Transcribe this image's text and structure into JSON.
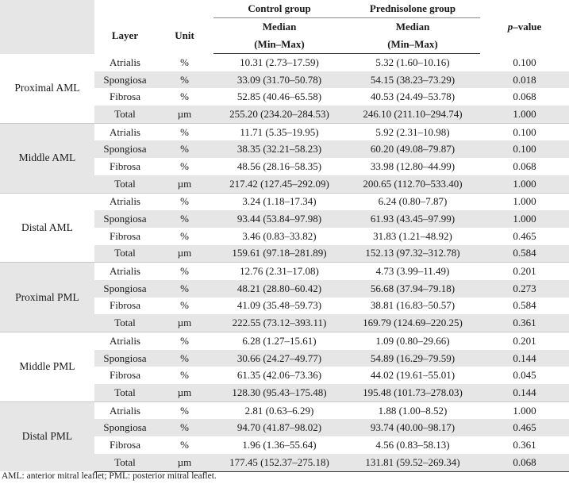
{
  "headers": {
    "control_group": "Control group",
    "prednisolone_group": "Prednisolone group",
    "layer": "Layer",
    "unit": "Unit",
    "pvalue_p": "p",
    "pvalue_suffix": "–value",
    "median": "Median",
    "minmax": "(Min–Max)"
  },
  "groups": [
    {
      "region": "Proximal AML",
      "shaded": false,
      "rows": [
        {
          "layer": "Atrialis",
          "unit": "%",
          "control": "10.31 (2.73–17.59)",
          "pred": "5.32 (1.60–10.16)",
          "p": "0.100"
        },
        {
          "layer": "Spongiosa",
          "unit": "%",
          "control": "33.09 (31.70–50.78)",
          "pred": "54.15 (38.23–73.29)",
          "p": "0.018"
        },
        {
          "layer": "Fibrosa",
          "unit": "%",
          "control": "52.85 (40.46–65.58)",
          "pred": "40.53 (24.49–53.78)",
          "p": "0.068"
        },
        {
          "layer": "Total",
          "unit": "µm",
          "control": "255.20 (234.20–284.53)",
          "pred": "246.10 (211.10–294.74)",
          "p": "1.000"
        }
      ]
    },
    {
      "region": "Middle AML",
      "shaded": true,
      "rows": [
        {
          "layer": "Atrialis",
          "unit": "%",
          "control": "11.71 (5.35–19.95)",
          "pred": "5.92 (2.31–10.98)",
          "p": "0.100"
        },
        {
          "layer": "Spongiosa",
          "unit": "%",
          "control": "38.35 (32.21–58.23)",
          "pred": "60.20 (49.08–79.87)",
          "p": "0.100"
        },
        {
          "layer": "Fibrosa",
          "unit": "%",
          "control": "48.56 (28.16–58.35)",
          "pred": "33.98 (12.80–44.99)",
          "p": "0.068"
        },
        {
          "layer": "Total",
          "unit": "µm",
          "control": "217.42 (127.45–292.09)",
          "pred": "200.65 (112.70–533.40)",
          "p": "1.000"
        }
      ]
    },
    {
      "region": "Distal AML",
      "shaded": false,
      "rows": [
        {
          "layer": "Atrialis",
          "unit": "%",
          "control": "3.24 (1.18–17.34)",
          "pred": "6.24 (0.80–7.87)",
          "p": "1.000"
        },
        {
          "layer": "Spongiosa",
          "unit": "%",
          "control": "93.44 (53.84–97.98)",
          "pred": "61.93 (43.45–97.99)",
          "p": "1.000"
        },
        {
          "layer": "Fibrosa",
          "unit": "%",
          "control": "3.46 (0.83–33.82)",
          "pred": "31.83 (1.21–48.92)",
          "p": "0.465"
        },
        {
          "layer": "Total",
          "unit": "µm",
          "control": "159.61 (97.18–281.89)",
          "pred": "152.13 (97.32–312.78)",
          "p": "0.584"
        }
      ]
    },
    {
      "region": "Proximal PML",
      "shaded": true,
      "rows": [
        {
          "layer": "Atrialis",
          "unit": "%",
          "control": "12.76 (2.31–17.08)",
          "pred": "4.73 (3.99–11.49)",
          "p": "0.201"
        },
        {
          "layer": "Spongiosa",
          "unit": "%",
          "control": "48.21 (28.80–60.42)",
          "pred": "56.68 (37.94–79.18)",
          "p": "0.273"
        },
        {
          "layer": "Fibrosa",
          "unit": "%",
          "control": "41.09 (35.48–59.73)",
          "pred": "38.81 (16.83–50.57)",
          "p": "0.584"
        },
        {
          "layer": "Total",
          "unit": "µm",
          "control": "222.55 (73.12–393.11)",
          "pred": "169.79 (124.69–220.25)",
          "p": "0.361"
        }
      ]
    },
    {
      "region": "Middle PML",
      "shaded": false,
      "rows": [
        {
          "layer": "Atrialis",
          "unit": "%",
          "control": "6.28 (1.27–15.61)",
          "pred": "1.09 (0.80–29.66)",
          "p": "0.201"
        },
        {
          "layer": "Spongiosa",
          "unit": "%",
          "control": "30.66 (24.27–49.77)",
          "pred": "54.89 (16.29–79.59)",
          "p": "0.144"
        },
        {
          "layer": "Fibrosa",
          "unit": "%",
          "control": "61.35 (42.06–73.36)",
          "pred": "44.02 (19.61–55.01)",
          "p": "0.045"
        },
        {
          "layer": "Total",
          "unit": "µm",
          "control": "128.30 (95.43–175.48)",
          "pred": "195.48 (101.73–278.03)",
          "p": "0.144"
        }
      ]
    },
    {
      "region": "Distal PML",
      "shaded": true,
      "rows": [
        {
          "layer": "Atrialis",
          "unit": "%",
          "control": "2.81 (0.63–6.29)",
          "pred": "1.88 (1.00–8.52)",
          "p": "1.000"
        },
        {
          "layer": "Spongiosa",
          "unit": "%",
          "control": "94.70 (41.87–98.02)",
          "pred": "93.74 (40.00–98.17)",
          "p": "0.465"
        },
        {
          "layer": "Fibrosa",
          "unit": "%",
          "control": "1.96 (1.36–55.64)",
          "pred": "4.56 (0.83–58.13)",
          "p": "0.361"
        },
        {
          "layer": "Total",
          "unit": "µm",
          "control": "177.45 (152.37–275.18)",
          "pred": "131.81 (59.52–269.34)",
          "p": "0.068"
        }
      ]
    }
  ],
  "footnote": "AML: anterior mitral leaflet; PML: posterior mitral leaflet.",
  "colors": {
    "shade": "#e6e6e6",
    "text": "#1a1a1a"
  }
}
